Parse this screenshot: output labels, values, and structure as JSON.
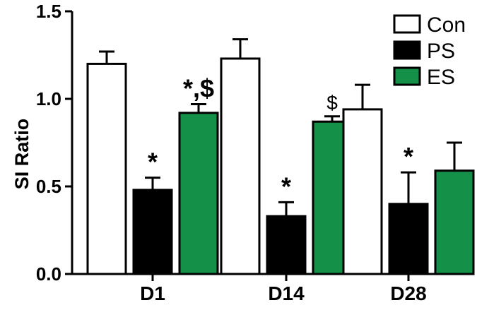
{
  "chart_data": {
    "type": "bar",
    "title": "",
    "xlabel": "",
    "ylabel": "SI Ratio",
    "ylim": [
      0,
      1.5
    ],
    "yticks": [
      "0.0",
      "0.5",
      "1.0",
      "1.5"
    ],
    "categories": [
      "D1",
      "D14",
      "D28"
    ],
    "grid": false,
    "legend_position": "top-right",
    "series": [
      {
        "name": "Con",
        "color": "#ffffff",
        "values": [
          1.2,
          1.23,
          0.94
        ],
        "errors": [
          0.07,
          0.11,
          0.14
        ],
        "annotations": [
          "",
          "",
          ""
        ]
      },
      {
        "name": "PS",
        "color": "#000000",
        "values": [
          0.48,
          0.33,
          0.4
        ],
        "errors": [
          0.07,
          0.08,
          0.18
        ],
        "annotations": [
          "*",
          "*",
          "*"
        ]
      },
      {
        "name": "ES",
        "color": "#159049",
        "values": [
          0.92,
          0.87,
          0.59
        ],
        "errors": [
          0.05,
          0.03,
          0.16
        ],
        "annotations": [
          "*,$",
          "$",
          ""
        ]
      }
    ]
  }
}
